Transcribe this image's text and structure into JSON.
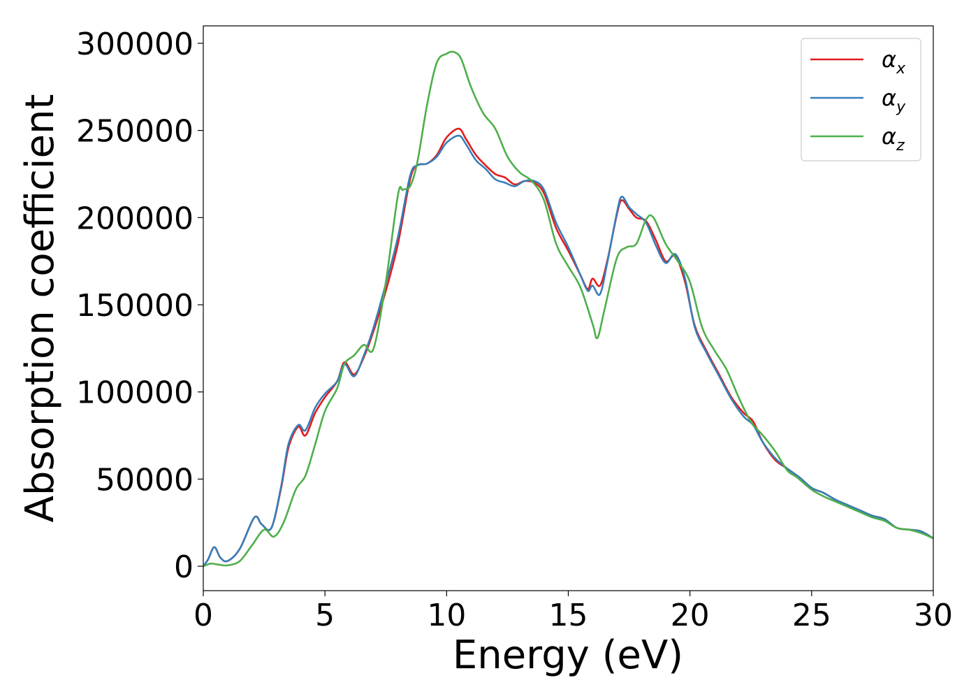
{
  "chart_data": {
    "type": "line",
    "xlabel": "Energy (eV)",
    "ylabel": "Absorption coefficient",
    "xlim": [
      0,
      30
    ],
    "ylim": [
      -14000,
      310000
    ],
    "xticks": [
      0,
      5,
      10,
      15,
      20,
      25,
      30
    ],
    "yticks": [
      0,
      50000,
      100000,
      150000,
      200000,
      250000,
      300000
    ],
    "grid": false,
    "legend_position": "top-right",
    "series": [
      {
        "name": "α_x",
        "label_main": "α",
        "label_sub": "x",
        "color": "#e41a1c",
        "x": [
          0,
          0.2,
          0.45,
          0.7,
          1.0,
          1.5,
          2.1,
          2.4,
          2.8,
          3.2,
          3.5,
          3.9,
          4.2,
          4.6,
          5.0,
          5.5,
          5.8,
          6.2,
          6.6,
          7.0,
          7.5,
          8.0,
          8.5,
          8.8,
          9.2,
          9.6,
          10.0,
          10.5,
          10.8,
          11.2,
          11.6,
          12.0,
          12.4,
          12.8,
          13.2,
          13.6,
          14.0,
          14.5,
          15.0,
          15.5,
          15.8,
          16.0,
          16.3,
          16.6,
          17.0,
          17.2,
          17.5,
          17.8,
          18.2,
          18.6,
          19.0,
          19.4,
          19.8,
          20.2,
          20.7,
          21.2,
          21.7,
          22.2,
          22.6,
          23.0,
          23.5,
          24.0,
          24.5,
          25.0,
          25.5,
          26.0,
          26.5,
          27.0,
          27.5,
          28.0,
          28.5,
          29.0,
          29.5,
          30.0
        ],
        "y": [
          0,
          4000,
          11000,
          5000,
          3000,
          10000,
          28000,
          24000,
          22000,
          45000,
          68000,
          80000,
          75000,
          88000,
          97000,
          106000,
          117000,
          110000,
          120000,
          135000,
          158000,
          185000,
          222000,
          230000,
          231000,
          236000,
          246000,
          251000,
          245000,
          236000,
          230000,
          225000,
          223000,
          219000,
          221000,
          220000,
          214000,
          194000,
          181000,
          167000,
          159000,
          165000,
          161000,
          175000,
          202000,
          210000,
          205000,
          200000,
          198000,
          187000,
          175000,
          178000,
          163000,
          138000,
          123000,
          110000,
          97000,
          88000,
          83000,
          71000,
          61000,
          56000,
          51000,
          45000,
          42000,
          38000,
          35000,
          32000,
          29000,
          27000,
          22000,
          21000,
          20000,
          16000
        ]
      },
      {
        "name": "α_y",
        "label_main": "α",
        "label_sub": "y",
        "color": "#377eb8",
        "x": [
          0,
          0.2,
          0.45,
          0.7,
          1.0,
          1.5,
          2.1,
          2.4,
          2.8,
          3.2,
          3.5,
          3.9,
          4.2,
          4.6,
          5.0,
          5.5,
          5.8,
          6.2,
          6.6,
          7.0,
          7.5,
          8.0,
          8.5,
          8.8,
          9.2,
          9.6,
          10.0,
          10.5,
          10.8,
          11.2,
          11.6,
          12.0,
          12.4,
          12.8,
          13.2,
          13.6,
          14.0,
          14.5,
          15.0,
          15.5,
          15.8,
          16.0,
          16.3,
          16.6,
          17.0,
          17.2,
          17.5,
          17.8,
          18.2,
          18.6,
          19.0,
          19.4,
          19.8,
          20.2,
          20.7,
          21.2,
          21.7,
          22.2,
          22.6,
          23.0,
          23.5,
          24.0,
          24.5,
          25.0,
          25.5,
          26.0,
          26.5,
          27.0,
          27.5,
          28.0,
          28.5,
          29.0,
          29.5,
          30.0
        ],
        "y": [
          0,
          4000,
          11000,
          5000,
          3000,
          10000,
          28000,
          24000,
          22000,
          46000,
          70000,
          81000,
          78000,
          91000,
          99000,
          106000,
          116000,
          109000,
          121000,
          137000,
          162000,
          189000,
          224000,
          230000,
          231000,
          235000,
          243000,
          247000,
          242000,
          233000,
          228000,
          222000,
          220000,
          218000,
          221000,
          221000,
          216000,
          197000,
          183000,
          167000,
          158000,
          161000,
          156000,
          174000,
          203000,
          212000,
          206000,
          202000,
          197000,
          184000,
          174000,
          179000,
          165000,
          137000,
          122000,
          109000,
          96000,
          86000,
          81000,
          71000,
          62000,
          56000,
          51000,
          45000,
          42000,
          38000,
          35000,
          32000,
          29000,
          27000,
          22000,
          21000,
          20000,
          16000
        ]
      },
      {
        "name": "α_z",
        "label_main": "α",
        "label_sub": "z",
        "color": "#4daf4a",
        "x": [
          0,
          0.3,
          0.6,
          1.0,
          1.5,
          2.0,
          2.5,
          2.9,
          3.3,
          3.8,
          4.2,
          4.6,
          5.0,
          5.5,
          5.8,
          6.2,
          6.6,
          7.0,
          7.5,
          8.0,
          8.2,
          8.5,
          8.8,
          9.2,
          9.6,
          10.0,
          10.3,
          10.6,
          11.0,
          11.5,
          12.0,
          12.5,
          13.0,
          13.5,
          14.0,
          14.5,
          15.0,
          15.5,
          16.0,
          16.2,
          16.5,
          17.0,
          17.4,
          17.8,
          18.2,
          18.5,
          19.0,
          19.5,
          20.0,
          20.5,
          21.0,
          21.5,
          22.0,
          22.5,
          23.0,
          23.5,
          24.0,
          24.4,
          25.0,
          25.5,
          26.0,
          26.5,
          27.0,
          27.5,
          28.0,
          28.5,
          29.0,
          29.5,
          30.0
        ],
        "y": [
          0,
          1500,
          1000,
          500,
          3000,
          12000,
          21000,
          17000,
          25000,
          44000,
          52000,
          70000,
          89000,
          102000,
          116000,
          121000,
          127000,
          125000,
          163000,
          213000,
          216000,
          218000,
          232000,
          265000,
          289000,
          294000,
          295000,
          291000,
          275000,
          260000,
          251000,
          235000,
          226000,
          221000,
          210000,
          185000,
          172000,
          160000,
          139000,
          131000,
          148000,
          177000,
          183000,
          185000,
          199000,
          200000,
          185000,
          175000,
          163000,
          137000,
          124000,
          113000,
          97000,
          83000,
          75000,
          66000,
          55000,
          51000,
          44000,
          40000,
          37000,
          34000,
          31000,
          28000,
          26000,
          22000,
          21000,
          19000,
          16000
        ]
      }
    ]
  }
}
